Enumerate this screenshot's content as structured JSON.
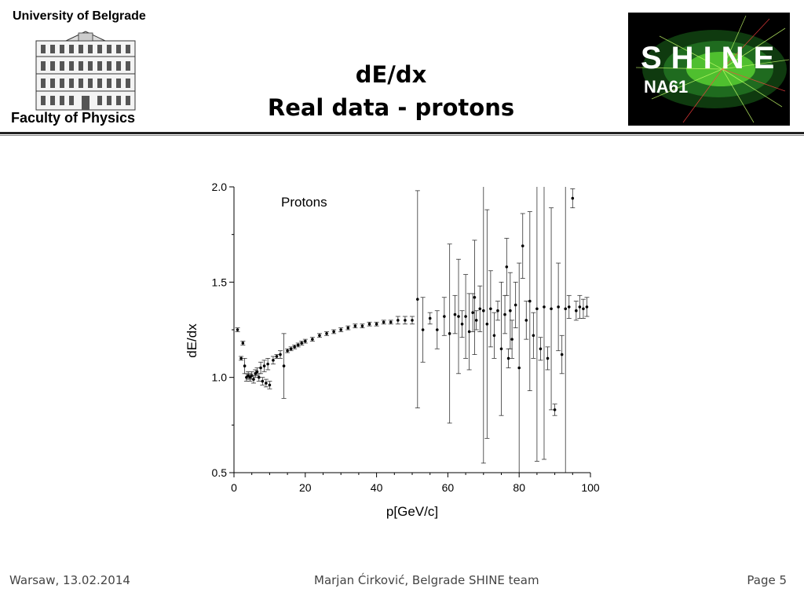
{
  "header": {
    "university": "University of Belgrade",
    "faculty": "Faculty of Physics",
    "title_line1": "dE/dx",
    "title_line2": "Real data - protons",
    "logo_shine": "SHINE",
    "logo_na61": "NA61"
  },
  "footer": {
    "left": "Warsaw, 13.02.2014",
    "center": "Marjan Ćirković, Belgrade SHINE team",
    "right": "Page 5"
  },
  "chart_data": {
    "type": "scatter",
    "annotation": "Protons",
    "xlabel": "p[GeV/c]",
    "ylabel": "dE/dx",
    "xlim": [
      0,
      100
    ],
    "ylim": [
      0.5,
      2.0
    ],
    "xticks": [
      "0",
      "20",
      "40",
      "60",
      "80",
      "100"
    ],
    "yticks": [
      "0.5",
      "1.0",
      "1.5",
      "2.0"
    ],
    "grid": false,
    "series": [
      {
        "x": [
          1,
          2,
          2.5,
          3,
          3.5,
          4,
          4.5,
          5,
          5.5,
          6,
          6.5,
          7,
          7.5,
          8,
          8.5,
          9,
          9.5,
          10,
          11,
          12,
          13,
          14,
          15,
          16,
          17,
          18,
          19,
          20,
          22,
          24,
          26,
          28,
          30,
          32,
          34,
          36,
          38,
          40,
          42,
          44,
          46,
          48,
          50,
          51.5,
          53,
          55,
          57,
          59,
          60.5,
          62,
          63,
          64,
          65,
          66,
          67,
          67.5,
          68,
          69,
          70,
          71,
          72,
          73,
          74,
          75,
          76,
          76.5,
          77,
          77.5,
          78,
          79,
          80,
          81,
          82,
          83,
          84,
          85,
          86,
          87,
          88,
          89,
          90,
          91,
          92,
          93,
          94,
          95,
          96,
          97,
          98,
          99
        ],
        "y": [
          1.25,
          1.1,
          1.18,
          1.06,
          1.0,
          1.01,
          1.0,
          1.01,
          0.99,
          1.02,
          1.03,
          1.0,
          1.05,
          0.98,
          1.06,
          0.97,
          1.07,
          0.96,
          1.09,
          1.11,
          1.12,
          1.06,
          1.14,
          1.15,
          1.16,
          1.17,
          1.18,
          1.19,
          1.2,
          1.22,
          1.23,
          1.24,
          1.25,
          1.26,
          1.27,
          1.27,
          1.28,
          1.28,
          1.29,
          1.29,
          1.3,
          1.3,
          1.3,
          1.41,
          1.25,
          1.31,
          1.25,
          1.32,
          1.23,
          1.33,
          1.32,
          1.28,
          1.32,
          1.24,
          1.34,
          1.42,
          1.3,
          1.36,
          1.35,
          1.28,
          1.36,
          1.22,
          1.35,
          1.15,
          1.33,
          1.58,
          1.1,
          1.35,
          1.2,
          1.38,
          1.05,
          1.69,
          1.3,
          1.4,
          1.22,
          1.36,
          1.15,
          1.37,
          1.1,
          1.36,
          0.83,
          1.37,
          1.12,
          1.36,
          1.37,
          1.94,
          1.35,
          1.37,
          1.36,
          1.37
        ],
        "yerr": [
          0.01,
          0.01,
          0.01,
          0.04,
          0.02,
          0.02,
          0.02,
          0.02,
          0.02,
          0.02,
          0.02,
          0.02,
          0.03,
          0.02,
          0.03,
          0.02,
          0.03,
          0.02,
          0.02,
          0.01,
          0.02,
          0.17,
          0.01,
          0.01,
          0.01,
          0.01,
          0.01,
          0.01,
          0.01,
          0.01,
          0.01,
          0.01,
          0.01,
          0.01,
          0.01,
          0.01,
          0.01,
          0.01,
          0.01,
          0.01,
          0.02,
          0.02,
          0.02,
          0.57,
          0.17,
          0.03,
          0.1,
          0.1,
          0.47,
          0.1,
          0.3,
          0.07,
          0.22,
          0.2,
          0.1,
          0.3,
          0.05,
          0.12,
          0.8,
          0.6,
          0.2,
          0.12,
          0.05,
          0.35,
          0.1,
          0.15,
          0.05,
          0.2,
          0.1,
          0.12,
          0.55,
          0.17,
          0.1,
          0.47,
          0.12,
          0.8,
          0.06,
          0.8,
          0.06,
          0.53,
          0.03,
          0.23,
          0.1,
          0.9,
          0.06,
          0.05,
          0.05,
          0.06,
          0.05,
          0.05
        ]
      }
    ]
  }
}
